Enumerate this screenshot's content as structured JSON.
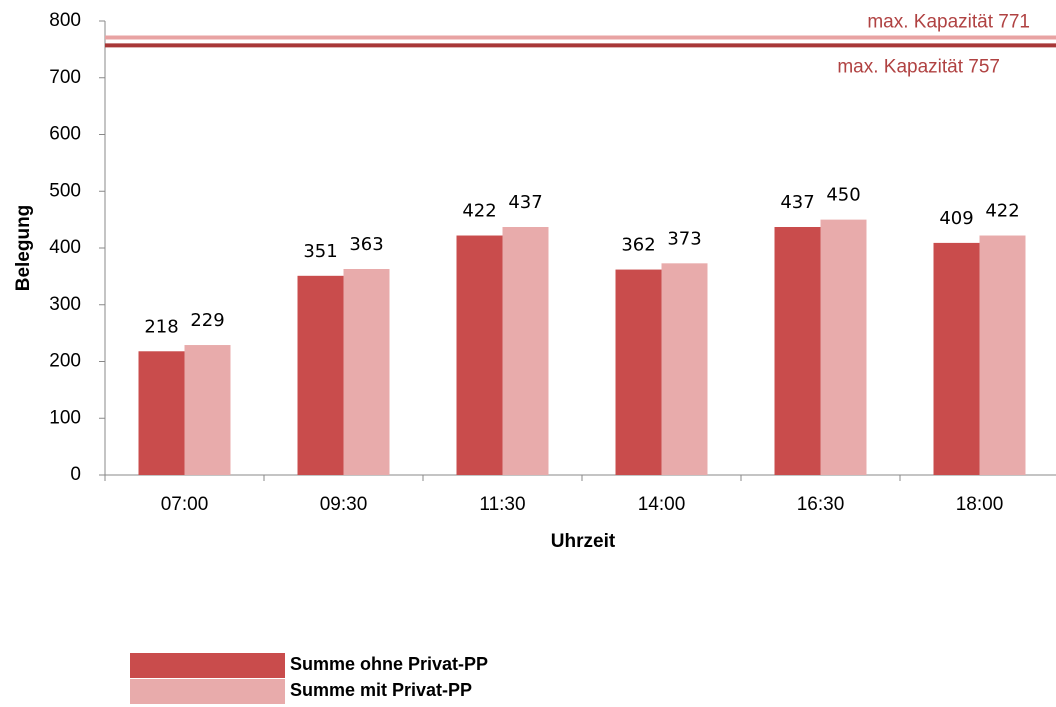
{
  "chart_data": {
    "type": "bar",
    "categories": [
      "07:00",
      "09:30",
      "11:30",
      "14:00",
      "16:30",
      "18:00"
    ],
    "series": [
      {
        "name": "Summe ohne Privat-PP",
        "color": "#c94c4c",
        "values": [
          218,
          351,
          422,
          362,
          437,
          409
        ]
      },
      {
        "name": "Summe mit Privat-PP",
        "color": "#e8abab",
        "values": [
          229,
          363,
          437,
          373,
          450,
          422
        ]
      }
    ],
    "reference_lines": [
      {
        "value": 771,
        "label": "max. Kapazität 771",
        "color": "#e8a3a3"
      },
      {
        "value": 757,
        "label": "max. Kapazität 757",
        "color": "#a83838"
      }
    ],
    "ylabel": "Belegung",
    "xlabel": "Uhrzeit",
    "ylim": [
      0,
      800
    ],
    "yticks": [
      0,
      100,
      200,
      300,
      400,
      500,
      600,
      700,
      800
    ],
    "grid": false,
    "legend": "bottom-left"
  }
}
